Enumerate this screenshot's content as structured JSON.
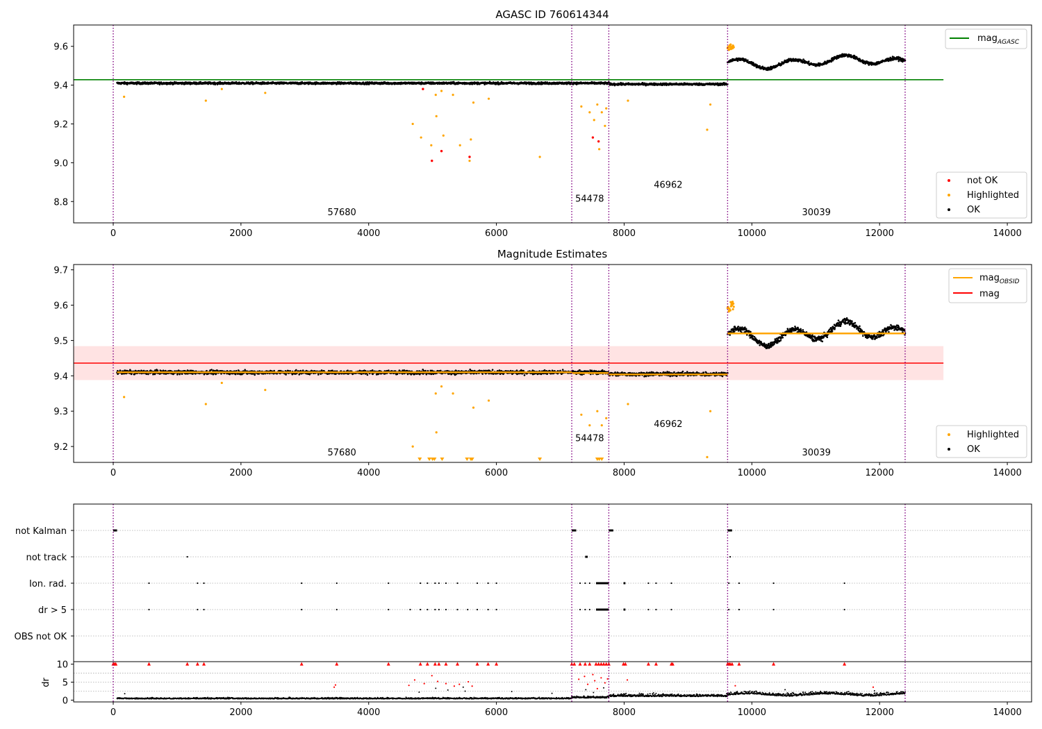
{
  "chart_data": [
    {
      "type": "scatter",
      "title": "AGASC ID 760614344",
      "xlim": [
        -620,
        14380
      ],
      "ylim": [
        8.69,
        9.71
      ],
      "xticks": [
        "0",
        "2000",
        "4000",
        "6000",
        "8000",
        "10000",
        "12000",
        "14000"
      ],
      "yticks": [
        "8.8",
        "9.0",
        "9.2",
        "9.4",
        "9.6"
      ],
      "vlines": [
        0,
        7180,
        7760,
        9620,
        12400
      ],
      "reference_line": {
        "name": "mag_AGASC",
        "y": 9.428,
        "x_end": 13000,
        "color": "#008000"
      },
      "segments": [
        {
          "x": [
            60,
            7180
          ],
          "level": 9.41,
          "label": "57680",
          "label_x": 3580,
          "label_y": 8.73
        },
        {
          "x": [
            7180,
            7760
          ],
          "level": 9.41,
          "label": "54478",
          "label_x": 7460,
          "label_y": 8.8
        },
        {
          "x": [
            7760,
            9620
          ],
          "level": 9.405,
          "label": "46962",
          "label_x": 8690,
          "label_y": 8.87
        },
        {
          "x": [
            9620,
            12400
          ],
          "level": 9.52,
          "label": "30039",
          "label_x": 11010,
          "label_y": 8.73
        }
      ],
      "highlighted_points": [
        [
          170,
          9.34
        ],
        [
          1450,
          9.32
        ],
        [
          1700,
          9.38
        ],
        [
          2380,
          9.36
        ],
        [
          4690,
          9.2
        ],
        [
          4820,
          9.13
        ],
        [
          4980,
          9.09
        ],
        [
          5060,
          9.24
        ],
        [
          5170,
          9.14
        ],
        [
          5430,
          9.09
        ],
        [
          5600,
          9.12
        ],
        [
          5640,
          9.31
        ],
        [
          5880,
          9.33
        ],
        [
          6680,
          9.03
        ],
        [
          7330,
          9.29
        ],
        [
          7460,
          9.26
        ],
        [
          7530,
          9.22
        ],
        [
          7580,
          9.3
        ],
        [
          7610,
          9.07
        ],
        [
          7650,
          9.26
        ],
        [
          7700,
          9.19
        ],
        [
          7720,
          9.28
        ],
        [
          8060,
          9.32
        ],
        [
          9300,
          9.17
        ],
        [
          9350,
          9.3
        ],
        [
          5580,
          9.01
        ],
        [
          5050,
          9.35
        ],
        [
          5140,
          9.37
        ],
        [
          5320,
          9.35
        ]
      ],
      "not_ok_points": [
        [
          4990,
          9.01
        ],
        [
          5140,
          9.06
        ],
        [
          5580,
          9.03
        ],
        [
          7510,
          9.13
        ],
        [
          7600,
          9.11
        ],
        [
          4850,
          9.38
        ]
      ],
      "legend": [
        {
          "label": "mag",
          "sub": "AGASC"
        },
        {
          "label": "not OK"
        },
        {
          "label": "Highlighted"
        },
        {
          "label": "OK"
        }
      ]
    },
    {
      "type": "scatter",
      "title": "Magnitude Estimates",
      "xlim": [
        -620,
        14380
      ],
      "ylim": [
        9.155,
        9.715
      ],
      "xticks": [
        "0",
        "2000",
        "4000",
        "6000",
        "8000",
        "10000",
        "12000",
        "14000"
      ],
      "yticks": [
        "9.2",
        "9.3",
        "9.4",
        "9.5",
        "9.6",
        "9.7"
      ],
      "vlines": [
        0,
        7180,
        7760,
        9620,
        12400
      ],
      "mag_line": {
        "name": "mag",
        "y": 9.436,
        "x_end": 13000,
        "band": [
          9.388,
          9.484
        ],
        "color": "#ff0000"
      },
      "obsid_levels": [
        {
          "x": [
            60,
            7180
          ],
          "y": 9.41
        },
        {
          "x": [
            7180,
            7760
          ],
          "y": 9.408
        },
        {
          "x": [
            7760,
            9620
          ],
          "y": 9.404
        },
        {
          "x": [
            9620,
            12400
          ],
          "y": 9.52
        }
      ],
      "segments": [
        {
          "x": [
            60,
            7180
          ],
          "level": 9.41,
          "label": "57680",
          "label_x": 3580,
          "label_y": 9.175
        },
        {
          "x": [
            7180,
            7760
          ],
          "level": 9.41,
          "label": "54478",
          "label_x": 7460,
          "label_y": 9.215
        },
        {
          "x": [
            7760,
            9620
          ],
          "level": 9.405,
          "label": "46962",
          "label_x": 8690,
          "label_y": 9.255
        },
        {
          "x": [
            9620,
            12400
          ],
          "level": 9.52,
          "label": "30039",
          "label_x": 11010,
          "label_y": 9.175
        }
      ],
      "highlighted_points": [
        [
          170,
          9.34
        ],
        [
          1450,
          9.32
        ],
        [
          1700,
          9.38
        ],
        [
          2380,
          9.36
        ],
        [
          4690,
          9.2
        ],
        [
          5060,
          9.24
        ],
        [
          5640,
          9.31
        ],
        [
          5880,
          9.33
        ],
        [
          7330,
          9.29
        ],
        [
          7460,
          9.26
        ],
        [
          7580,
          9.3
        ],
        [
          7650,
          9.26
        ],
        [
          7720,
          9.28
        ],
        [
          8060,
          9.32
        ],
        [
          9300,
          9.17
        ],
        [
          9350,
          9.3
        ],
        [
          5050,
          9.35
        ],
        [
          5140,
          9.37
        ],
        [
          5320,
          9.35
        ]
      ],
      "below_axis_x": [
        4800,
        4950,
        5000,
        5030,
        5150,
        5540,
        5600,
        5620,
        6680,
        7580,
        7610,
        7650
      ],
      "legend": [
        {
          "label": "mag",
          "sub": "OBSID"
        },
        {
          "label": "mag"
        },
        {
          "label": "Highlighted"
        },
        {
          "label": "OK"
        }
      ]
    },
    {
      "type": "scatter",
      "categories": [
        "not Kalman",
        "not track",
        "Ion. rad.",
        "dr > 5",
        "OBS not OK"
      ],
      "xlim": [
        -620,
        14380
      ],
      "vlines": [
        0,
        7180,
        7760,
        9620,
        12400
      ],
      "flags": {
        "not Kalman": [
          [
            0,
            60
          ],
          [
            7180,
            7250
          ],
          [
            7760,
            7830
          ],
          [
            9620,
            9690
          ]
        ],
        "not track": [
          [
            1160,
            1160
          ],
          [
            7390,
            7430
          ],
          [
            9660,
            9660
          ]
        ],
        "Ion. rad.": [
          [
            560,
            560
          ],
          [
            1320,
            1320
          ],
          [
            1420,
            1420
          ],
          [
            2950,
            2950
          ],
          [
            3500,
            3500
          ],
          [
            4310,
            4310
          ],
          [
            4810,
            4810
          ],
          [
            4920,
            4920
          ],
          [
            5040,
            5040
          ],
          [
            5100,
            5100
          ],
          [
            5210,
            5210
          ],
          [
            5390,
            5390
          ],
          [
            5700,
            5700
          ],
          [
            5870,
            5870
          ],
          [
            6000,
            6000
          ],
          [
            7310,
            7310
          ],
          [
            7390,
            7390
          ],
          [
            7460,
            7460
          ],
          [
            7560,
            7760
          ],
          [
            7990,
            8020
          ],
          [
            8380,
            8380
          ],
          [
            8500,
            8500
          ],
          [
            8740,
            8760
          ],
          [
            9640,
            9640
          ],
          [
            9800,
            9800
          ],
          [
            10340,
            10340
          ],
          [
            11450,
            11450
          ]
        ],
        "dr > 5": [
          [
            560,
            560
          ],
          [
            1320,
            1320
          ],
          [
            1420,
            1420
          ],
          [
            2950,
            2950
          ],
          [
            3500,
            3500
          ],
          [
            4310,
            4310
          ],
          [
            4650,
            4650
          ],
          [
            4810,
            4810
          ],
          [
            4920,
            4920
          ],
          [
            5040,
            5040
          ],
          [
            5100,
            5100
          ],
          [
            5210,
            5210
          ],
          [
            5390,
            5390
          ],
          [
            5550,
            5550
          ],
          [
            5700,
            5700
          ],
          [
            5870,
            5870
          ],
          [
            6000,
            6000
          ],
          [
            7310,
            7310
          ],
          [
            7390,
            7390
          ],
          [
            7460,
            7460
          ],
          [
            7560,
            7760
          ],
          [
            7990,
            8020
          ],
          [
            8380,
            8380
          ],
          [
            8500,
            8500
          ],
          [
            8740,
            8760
          ],
          [
            9640,
            9640
          ],
          [
            9800,
            9800
          ],
          [
            10340,
            10340
          ],
          [
            11450,
            11450
          ]
        ],
        "OBS not OK": []
      }
    },
    {
      "type": "scatter",
      "ylabel": "dr",
      "xlim": [
        -620,
        14380
      ],
      "ylim": [
        -0.5,
        10.7
      ],
      "xticks": [
        "0",
        "2000",
        "4000",
        "6000",
        "8000",
        "10000",
        "12000",
        "14000"
      ],
      "yticks": [
        "0",
        "5",
        "10"
      ],
      "vlines": [
        0,
        7180,
        7760,
        9620,
        12400
      ],
      "segments": [
        {
          "x": [
            60,
            7180
          ],
          "base": 0.35,
          "noise": 0.35
        },
        {
          "x": [
            7180,
            7760
          ],
          "base": 0.6,
          "noise": 0.6
        },
        {
          "x": [
            7760,
            9620
          ],
          "base": 1.0,
          "noise": 0.7
        },
        {
          "x": [
            9620,
            12400
          ],
          "base": 1.4,
          "noise": 0.8
        }
      ],
      "clipped_x": [
        0,
        20,
        40,
        560,
        1160,
        1320,
        1420,
        2950,
        3500,
        4310,
        4810,
        4920,
        5040,
        5100,
        5210,
        5390,
        5700,
        5870,
        6000,
        7180,
        7220,
        7310,
        7390,
        7460,
        7560,
        7600,
        7640,
        7680,
        7720,
        7760,
        7990,
        8020,
        8380,
        8500,
        8740,
        8760,
        9620,
        9640,
        9660,
        9690,
        9800,
        10340,
        11450
      ],
      "red_points": [
        [
          3480,
          4.2
        ],
        [
          3460,
          3.6
        ],
        [
          4720,
          5.6
        ],
        [
          4990,
          6.8
        ],
        [
          5080,
          5.2
        ],
        [
          5210,
          4.6
        ],
        [
          5560,
          5.1
        ],
        [
          5620,
          3.9
        ],
        [
          4630,
          4.1
        ],
        [
          7290,
          5.8
        ],
        [
          7380,
          6.6
        ],
        [
          7430,
          4.4
        ],
        [
          7510,
          7.1
        ],
        [
          7540,
          5.4
        ],
        [
          7580,
          3.2
        ],
        [
          7640,
          6.2
        ],
        [
          7700,
          4.8
        ],
        [
          7740,
          5.9
        ],
        [
          8050,
          5.6
        ],
        [
          11900,
          3.6
        ],
        [
          9740,
          4.0
        ],
        [
          5340,
          3.9
        ],
        [
          5420,
          4.4
        ],
        [
          4870,
          4.6
        ]
      ],
      "black_high": [
        [
          180,
          1.8
        ],
        [
          4790,
          2.2
        ],
        [
          5050,
          3.3
        ],
        [
          5240,
          2.8
        ],
        [
          5480,
          3.6
        ],
        [
          5510,
          2.5
        ],
        [
          6240,
          2.4
        ],
        [
          6870,
          1.9
        ],
        [
          7400,
          2.9
        ],
        [
          7520,
          2.1
        ],
        [
          7680,
          3.4
        ],
        [
          8460,
          2.0
        ],
        [
          10520,
          2.9
        ],
        [
          11920,
          2.6
        ]
      ]
    }
  ]
}
